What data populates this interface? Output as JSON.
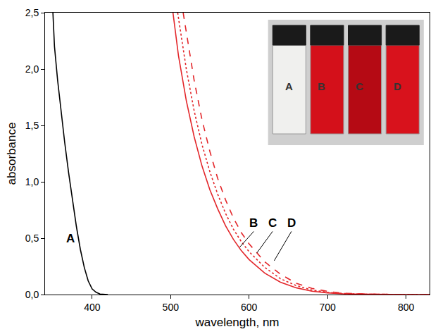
{
  "chart_data": {
    "type": "line",
    "x_label": "wavelength, nm",
    "y_label": "absorbance",
    "xlim": [
      340,
      830
    ],
    "xticks": [
      400,
      500,
      600,
      700,
      800
    ],
    "ylim": [
      0,
      2.5
    ],
    "yticks": [
      {
        "value": 0,
        "label": "0,0"
      },
      {
        "value": 0.5,
        "label": "0,5"
      },
      {
        "value": 1,
        "label": "1,0"
      },
      {
        "value": 1.5,
        "label": "1,5"
      },
      {
        "value": 2,
        "label": "2,0"
      },
      {
        "value": 2.5,
        "label": "2,5"
      }
    ],
    "grid": false,
    "series": [
      {
        "name": "A",
        "color": "#000000",
        "line_style": "solid",
        "x": [
          350,
          352,
          356,
          360,
          365,
          370,
          375,
          380,
          385,
          390,
          395,
          400,
          405,
          410,
          420
        ],
        "values": [
          2.5,
          2.2,
          1.9,
          1.65,
          1.35,
          1.08,
          0.83,
          0.6,
          0.4,
          0.24,
          0.12,
          0.05,
          0.02,
          0.005,
          0
        ]
      },
      {
        "name": "B",
        "color": "#e3262a",
        "line_style": "solid",
        "x": [
          503,
          510,
          520,
          530,
          540,
          550,
          560,
          570,
          580,
          590,
          600,
          620,
          640,
          660,
          680,
          700,
          720,
          750,
          800,
          830
        ],
        "values": [
          2.5,
          2.12,
          1.72,
          1.4,
          1.14,
          0.93,
          0.76,
          0.61,
          0.49,
          0.39,
          0.31,
          0.19,
          0.11,
          0.06,
          0.03,
          0.015,
          0.006,
          0.002,
          0,
          0
        ]
      },
      {
        "name": "C",
        "color": "#e3262a",
        "line_style": "dot",
        "x": [
          509,
          520,
          530,
          540,
          550,
          560,
          570,
          580,
          590,
          600,
          620,
          640,
          660,
          680,
          700,
          720,
          750,
          800,
          830
        ],
        "values": [
          2.5,
          2.0,
          1.63,
          1.33,
          1.09,
          0.89,
          0.72,
          0.58,
          0.47,
          0.38,
          0.24,
          0.14,
          0.08,
          0.04,
          0.02,
          0.009,
          0.003,
          0,
          0
        ]
      },
      {
        "name": "D",
        "color": "#e3262a",
        "line_style": "dash",
        "x": [
          516,
          520,
          530,
          540,
          550,
          560,
          570,
          580,
          590,
          600,
          620,
          640,
          660,
          680,
          700,
          720,
          750,
          800,
          830
        ],
        "values": [
          2.5,
          2.33,
          1.9,
          1.55,
          1.27,
          1.03,
          0.84,
          0.68,
          0.55,
          0.45,
          0.29,
          0.18,
          0.1,
          0.055,
          0.028,
          0.012,
          0.004,
          0,
          0
        ]
      }
    ],
    "annotations": [
      {
        "text": "A",
        "x": 372,
        "y": 0.5
      },
      {
        "text": "B",
        "x": 588,
        "y": 0.42,
        "ax": 606,
        "ay": 0.56
      },
      {
        "text": "C",
        "x": 610,
        "y": 0.37,
        "ax": 630,
        "ay": 0.56
      },
      {
        "text": "D",
        "x": 632,
        "y": 0.3,
        "ax": 654,
        "ay": 0.56
      }
    ],
    "inset": {
      "vials": [
        {
          "label": "A",
          "color": "#f0f0ee"
        },
        {
          "label": "B",
          "color": "#d4101a"
        },
        {
          "label": "C",
          "color": "#b50a14"
        },
        {
          "label": "D",
          "color": "#d8121c"
        }
      ]
    }
  }
}
